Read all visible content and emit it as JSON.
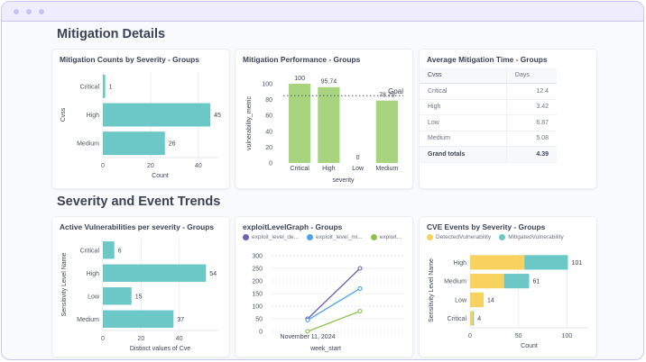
{
  "window": {
    "dots": [
      "dot-1",
      "dot-2",
      "dot-3"
    ]
  },
  "sections": {
    "mitigation_details": "Mitigation Details",
    "severity_trends": "Severity and Event Trends"
  },
  "colors": {
    "teal": "#6cc8c6",
    "green": "#a8d37f",
    "yellow": "#f8d25e",
    "purple": "#6e5fb0",
    "blue": "#4aa3e8",
    "lime": "#8cc24b"
  },
  "cards": {
    "counts": {
      "title": "Mitigation Counts by Severity - Groups"
    },
    "performance": {
      "title": "Mitigation Performance - Groups"
    },
    "avg_time": {
      "title": "Average Mitigation Time - Groups",
      "columns": [
        "Cvss",
        "Days"
      ],
      "rows": [
        {
          "label": "Critical",
          "value": "12.4"
        },
        {
          "label": "High",
          "value": "3.42"
        },
        {
          "label": "Low",
          "value": "6.87"
        },
        {
          "label": "Medium",
          "value": "5.08"
        }
      ],
      "total": {
        "label": "Grand totals",
        "value": "4.39"
      }
    },
    "active": {
      "title": "Active Vulnerabilities per severity - Groups"
    },
    "exploit": {
      "title": "exploitLevelGraph - Groups",
      "legend": [
        "exploit_level_de...",
        "exploit_level_mi...",
        "exploit..."
      ]
    },
    "cve_events": {
      "title": "CVE Events by Severity - Groups",
      "legend": [
        "DetectedVulnerability",
        "MitigatedVulnerability"
      ]
    }
  },
  "chart_data": [
    {
      "id": "counts",
      "type": "bar",
      "orientation": "horizontal",
      "title": "Mitigation Counts by Severity - Groups",
      "categories": [
        "Critical",
        "High",
        "Medium"
      ],
      "values": [
        1,
        45,
        26
      ],
      "xlabel": "Count",
      "ylabel": "Cvss",
      "xticks": [
        0,
        20,
        40
      ],
      "xlim": [
        0,
        48
      ],
      "grid": true
    },
    {
      "id": "performance",
      "type": "bar",
      "orientation": "vertical",
      "title": "Mitigation Performance - Groups",
      "categories": [
        "Critical",
        "High",
        "Low",
        "Medium"
      ],
      "values": [
        100,
        95.74,
        0,
        78.79
      ],
      "value_labels": [
        "100",
        "95.74",
        "0",
        "78.79"
      ],
      "xlabel": "severity",
      "ylabel": "vulnerability_metric",
      "yticks": [
        0,
        20,
        40,
        60,
        80,
        100
      ],
      "ylim": [
        0,
        100
      ],
      "goal": {
        "label": "Goal",
        "value": 85
      }
    },
    {
      "id": "active",
      "type": "bar",
      "orientation": "horizontal",
      "title": "Active Vulnerabilities per severity - Groups",
      "categories": [
        "Critical",
        "High",
        "Low",
        "Medium"
      ],
      "values": [
        6,
        54,
        15,
        37
      ],
      "xlabel": "Distinct values of Cve",
      "ylabel": "Sensitivity Level Name",
      "xticks": [
        0,
        20,
        40
      ],
      "xlim": [
        0,
        60
      ],
      "grid": true
    },
    {
      "id": "exploit",
      "type": "line",
      "title": "exploitLevelGraph - Groups",
      "x": [
        "November 11, 2024",
        ""
      ],
      "xtick_labels": [
        "November 11, 2024"
      ],
      "xlabel": "week_start",
      "ylabel": "",
      "yticks": [
        0,
        50,
        100,
        150,
        200,
        250,
        300
      ],
      "ylim": [
        0,
        300
      ],
      "series": [
        {
          "name": "exploit_level_de...",
          "values": [
            50,
            250
          ]
        },
        {
          "name": "exploit_level_mi...",
          "values": [
            45,
            170
          ]
        },
        {
          "name": "exploit...",
          "values": [
            0,
            80
          ]
        }
      ]
    },
    {
      "id": "cve_events",
      "type": "bar",
      "orientation": "horizontal",
      "stacked": true,
      "title": "CVE Events by Severity - Groups",
      "categories": [
        "High",
        "Medium",
        "Low",
        "Critical"
      ],
      "series": [
        {
          "name": "DetectedVulnerability",
          "values": [
            56,
            35,
            14,
            3
          ]
        },
        {
          "name": "MitigatedVulnerability",
          "values": [
            45,
            26,
            0,
            1
          ]
        }
      ],
      "totals": [
        101,
        61,
        14,
        4
      ],
      "xlabel": "Count",
      "ylabel": "Sensitivity Level Name",
      "xticks": [
        0,
        50,
        100
      ],
      "xlim": [
        0,
        122
      ]
    }
  ]
}
